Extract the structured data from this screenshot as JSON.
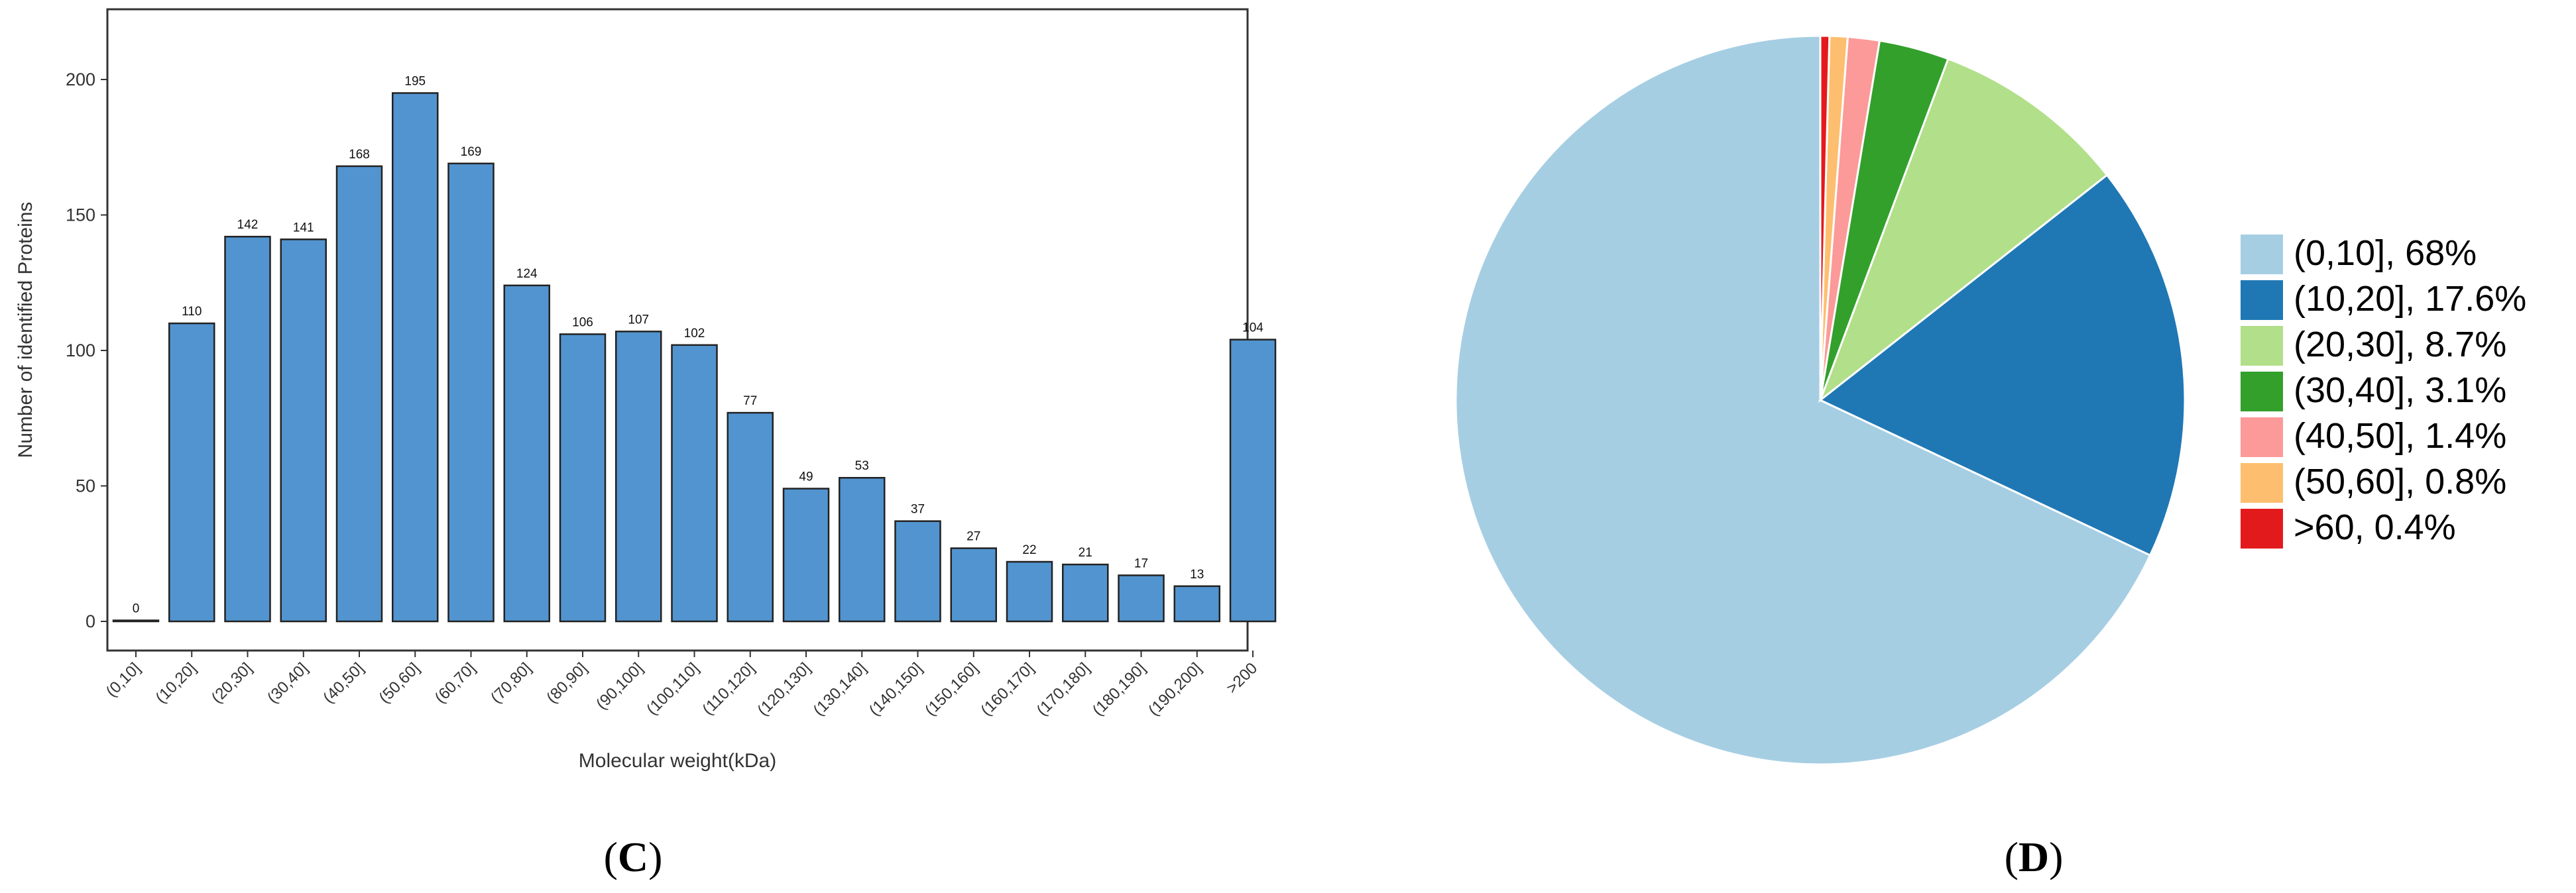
{
  "panels": {
    "left_label": {
      "open": "(",
      "letter": "C",
      "close": ")"
    },
    "right_label": {
      "open": "(",
      "letter": "D",
      "close": ")"
    }
  },
  "chart_data": [
    {
      "type": "bar",
      "xlabel": "Molecular weight(kDa)",
      "ylabel": "Number of identified Proteins",
      "ylim": [
        0,
        220
      ],
      "yticks": [
        0,
        50,
        100,
        150,
        200
      ],
      "categories": [
        "(0,10]",
        "(10,20]",
        "(20,30]",
        "(30,40]",
        "(40,50]",
        "(50,60]",
        "(60,70]",
        "(70,80]",
        "(80,90]",
        "(90,100]",
        "(100,110]",
        "(110,120]",
        "(120,130]",
        "(130,140]",
        "(140,150]",
        "(150,160]",
        "(160,170]",
        "(170,180]",
        "(180,190]",
        "(190,200]",
        ">200"
      ],
      "values": [
        0,
        110,
        142,
        141,
        168,
        195,
        169,
        124,
        106,
        107,
        102,
        77,
        49,
        53,
        37,
        27,
        22,
        21,
        17,
        13,
        104
      ],
      "bar_color": "#5294cf",
      "grid": false
    },
    {
      "type": "pie",
      "slices": [
        {
          "label": "(0,10], 68%",
          "value": 68,
          "color": "#a6cee3"
        },
        {
          "label": "(10,20], 17.6%",
          "value": 17.6,
          "color": "#1f78b4"
        },
        {
          "label": "(20,30], 8.7%",
          "value": 8.7,
          "color": "#b2df8a"
        },
        {
          "label": "(30,40], 3.1%",
          "value": 3.1,
          "color": "#33a02c"
        },
        {
          "label": "(40,50], 1.4%",
          "value": 1.4,
          "color": "#fb9a99"
        },
        {
          "label": "(50,60], 0.8%",
          "value": 0.8,
          "color": "#fdbf6f"
        },
        {
          "label": ">60, 0.4%",
          "value": 0.4,
          "color": "#e31a1c"
        }
      ],
      "legend_position": "right"
    }
  ]
}
